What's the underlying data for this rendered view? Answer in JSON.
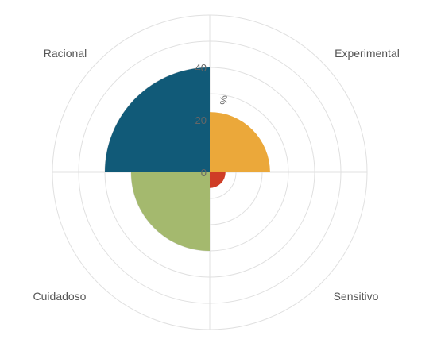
{
  "chart_data": {
    "type": "polar-area",
    "unit": "%",
    "ticks": [
      0,
      20,
      40
    ],
    "rmax": 60,
    "categories": [
      "Experimental",
      "Sensitivo",
      "Cuidadoso",
      "Racional"
    ],
    "values": [
      23,
      6,
      30,
      40
    ],
    "colors": [
      "#EBA83A",
      "#CF3D26",
      "#A4B96E",
      "#115A78"
    ]
  }
}
